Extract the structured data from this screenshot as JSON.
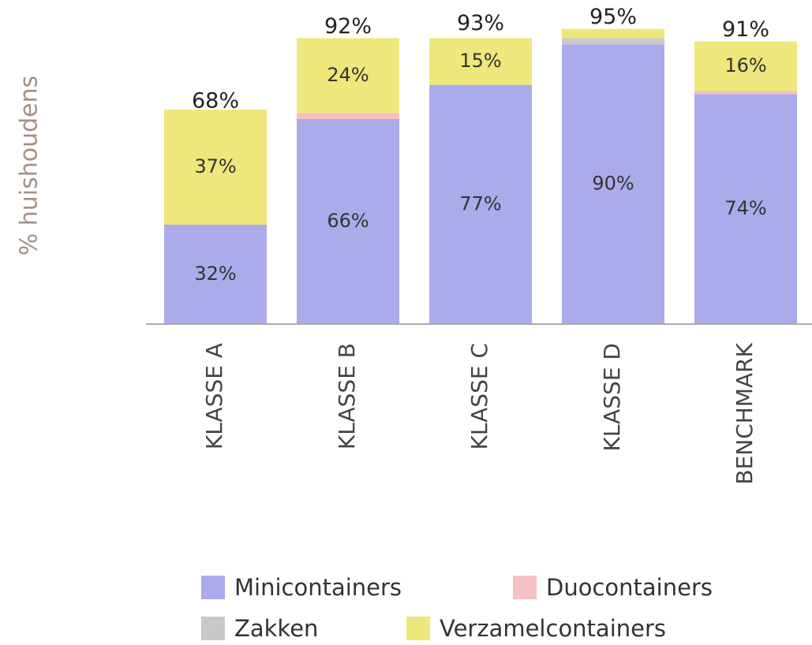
{
  "chart_data": {
    "type": "stacked-bar",
    "y_label": "% huishoudens",
    "categories": [
      "KLASSE A",
      "KLASSE B",
      "KLASSE C",
      "KLASSE D",
      "BENCHMARK"
    ],
    "series": [
      {
        "name": "Minicontainers",
        "color": "#abaaea",
        "values": [
          32,
          66,
          77,
          90,
          74
        ],
        "value_labels": [
          "32%",
          "66%",
          "77%",
          "90%",
          "74%"
        ]
      },
      {
        "name": "Duocontainers",
        "color": "#f5c1c5",
        "values": [
          0,
          2,
          0,
          0,
          1
        ],
        "value_labels": [
          null,
          null,
          null,
          null,
          null
        ]
      },
      {
        "name": "Zakken",
        "color": "#c9c9c9",
        "values": [
          0,
          0,
          0,
          2,
          0
        ],
        "value_labels": [
          null,
          null,
          null,
          null,
          null
        ]
      },
      {
        "name": "Verzamelcontainers",
        "color": "#ede77c",
        "values": [
          37,
          24,
          15,
          3,
          16
        ],
        "value_labels": [
          "37%",
          "24%",
          "15%",
          null,
          "16%"
        ]
      }
    ],
    "totals": [
      68,
      92,
      93,
      95,
      91
    ],
    "total_labels": [
      "68%",
      "92%",
      "93%",
      "95%",
      "91%"
    ],
    "ylim": [
      0,
      100
    ],
    "legend": "bottom"
  }
}
